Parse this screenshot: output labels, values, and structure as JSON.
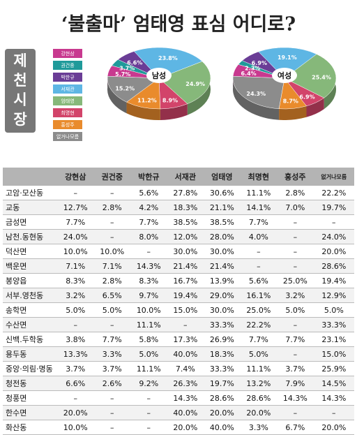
{
  "title": "‘불출마’ 엄태영 표심 어디로?",
  "side_label": "제천시장",
  "chart_data": [
    {
      "type": "pie",
      "center_label": "남성",
      "categories": [
        "강현삼",
        "권건중",
        "박한규",
        "서재관",
        "엄태영",
        "최명현",
        "홍성주",
        "없거나모름"
      ],
      "colors": [
        "#c8398f",
        "#1f9a9a",
        "#6a3d96",
        "#5eb6e4",
        "#86b87a",
        "#d2446a",
        "#e98b2c",
        "#8c8c8c"
      ],
      "values": [
        5.7,
        3.7,
        6.6,
        23.8,
        24.9,
        8.9,
        11.2,
        15.2
      ],
      "value_labels": [
        "5.7%",
        "3.7%",
        "6.6%",
        "23.8%",
        "24.9%",
        "8.9%",
        "11.2%",
        "15.2%"
      ]
    },
    {
      "type": "pie",
      "center_label": "여성",
      "categories": [
        "강현삼",
        "권건중",
        "박한규",
        "서재관",
        "엄태영",
        "최명현",
        "홍성주",
        "없거나모름"
      ],
      "colors": [
        "#c8398f",
        "#1f9a9a",
        "#6a3d96",
        "#5eb6e4",
        "#86b87a",
        "#d2446a",
        "#e98b2c",
        "#8c8c8c"
      ],
      "values": [
        6.4,
        2.3,
        6.9,
        19.1,
        25.4,
        6.9,
        8.7,
        24.3
      ],
      "value_labels": [
        "6.4%",
        "2.3%",
        "6.9%",
        "19.1%",
        "25.4%",
        "6.9%",
        "8.7%",
        "24.3%"
      ]
    }
  ],
  "table": {
    "header": [
      "강현삼",
      "권건중",
      "박한규",
      "서재관",
      "엄태영",
      "최명현",
      "홍성주",
      "없거나모름"
    ],
    "rows": [
      [
        "고암·모산동",
        "–",
        "–",
        "5.6%",
        "27.8%",
        "30.6%",
        "11.1%",
        "2.8%",
        "22.2%"
      ],
      [
        "교동",
        "12.7%",
        "2.8%",
        "4.2%",
        "18.3%",
        "21.1%",
        "14.1%",
        "7.0%",
        "19.7%"
      ],
      [
        "금성면",
        "7.7%",
        "–",
        "7.7%",
        "38.5%",
        "38.5%",
        "7.7%",
        "–",
        "–"
      ],
      [
        "남천.동현동",
        "24.0%",
        "–",
        "8.0%",
        "12.0%",
        "28.0%",
        "4.0%",
        "–",
        "24.0%"
      ],
      [
        "덕산면",
        "10.0%",
        "10.0%",
        "–",
        "30.0%",
        "30.0%",
        "–",
        "–",
        "20.0%"
      ],
      [
        "백운면",
        "7.1%",
        "7.1%",
        "14.3%",
        "21.4%",
        "21.4%",
        "–",
        "–",
        "28.6%"
      ],
      [
        "봉양읍",
        "8.3%",
        "2.8%",
        "8.3%",
        "16.7%",
        "13.9%",
        "5.6%",
        "25.0%",
        "19.4%"
      ],
      [
        "서부.영천동",
        "3.2%",
        "6.5%",
        "9.7%",
        "19.4%",
        "29.0%",
        "16.1%",
        "3.2%",
        "12.9%"
      ],
      [
        "송학면",
        "5.0%",
        "5.0%",
        "10.0%",
        "15.0%",
        "30.0%",
        "25.0%",
        "5.0%",
        "5.0%"
      ],
      [
        "수산면",
        "–",
        "–",
        "11.1%",
        "–",
        "33.3%",
        "22.2%",
        "–",
        "33.3%"
      ],
      [
        "신백.두학동",
        "3.8%",
        "7.7%",
        "5.8%",
        "17.3%",
        "26.9%",
        "7.7%",
        "7.7%",
        "23.1%"
      ],
      [
        "용두동",
        "13.3%",
        "3.3%",
        "5.0%",
        "40.0%",
        "18.3%",
        "5.0%",
        "–",
        "15.0%"
      ],
      [
        "중앙·의림·명동",
        "3.7%",
        "3.7%",
        "11.1%",
        "7.4%",
        "33.3%",
        "11.1%",
        "3.7%",
        "25.9%"
      ],
      [
        "청전동",
        "6.6%",
        "2.6%",
        "9.2%",
        "26.3%",
        "19.7%",
        "13.2%",
        "7.9%",
        "14.5%"
      ],
      [
        "청풍면",
        "–",
        "–",
        "–",
        "14.3%",
        "28.6%",
        "28.6%",
        "14.3%",
        "14.3%"
      ],
      [
        "한수면",
        "20.0%",
        "–",
        "–",
        "40.0%",
        "20.0%",
        "20.0%",
        "–",
        "–"
      ],
      [
        "화산동",
        "10.0%",
        "–",
        "–",
        "20.0%",
        "40.0%",
        "3.3%",
        "6.7%",
        "20.0%"
      ]
    ]
  }
}
